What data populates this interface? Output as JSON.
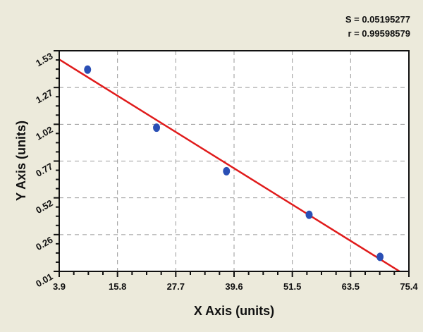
{
  "stats": {
    "s_label": "S = 0.05195277",
    "r_label": "r = 0.99598579"
  },
  "chart_data": {
    "type": "scatter",
    "title": "",
    "xlabel": "X Axis (units)",
    "ylabel": "Y Axis (units)",
    "xlim": [
      3.9,
      75.4
    ],
    "ylim": [
      0.01,
      1.53
    ],
    "xticks": [
      "3.9",
      "15.8",
      "27.7",
      "39.6",
      "51.5",
      "63.5",
      "75.4"
    ],
    "yticks": [
      "0.01",
      "0.26",
      "0.52",
      "0.77",
      "1.02",
      "1.27",
      "1.53"
    ],
    "grid": true,
    "points": {
      "x": [
        9.7,
        23.8,
        38.1,
        55.0,
        69.5
      ],
      "y": [
        1.4,
        1.0,
        0.7,
        0.4,
        0.11
      ]
    },
    "fit_line": {
      "x": [
        3.9,
        73.5
      ],
      "y": [
        1.47,
        0.01
      ]
    },
    "colors": {
      "points": "#2a4fb5",
      "fit_line": "#e01b1b",
      "background": "#eceadb",
      "plot": "#ffffff"
    }
  }
}
